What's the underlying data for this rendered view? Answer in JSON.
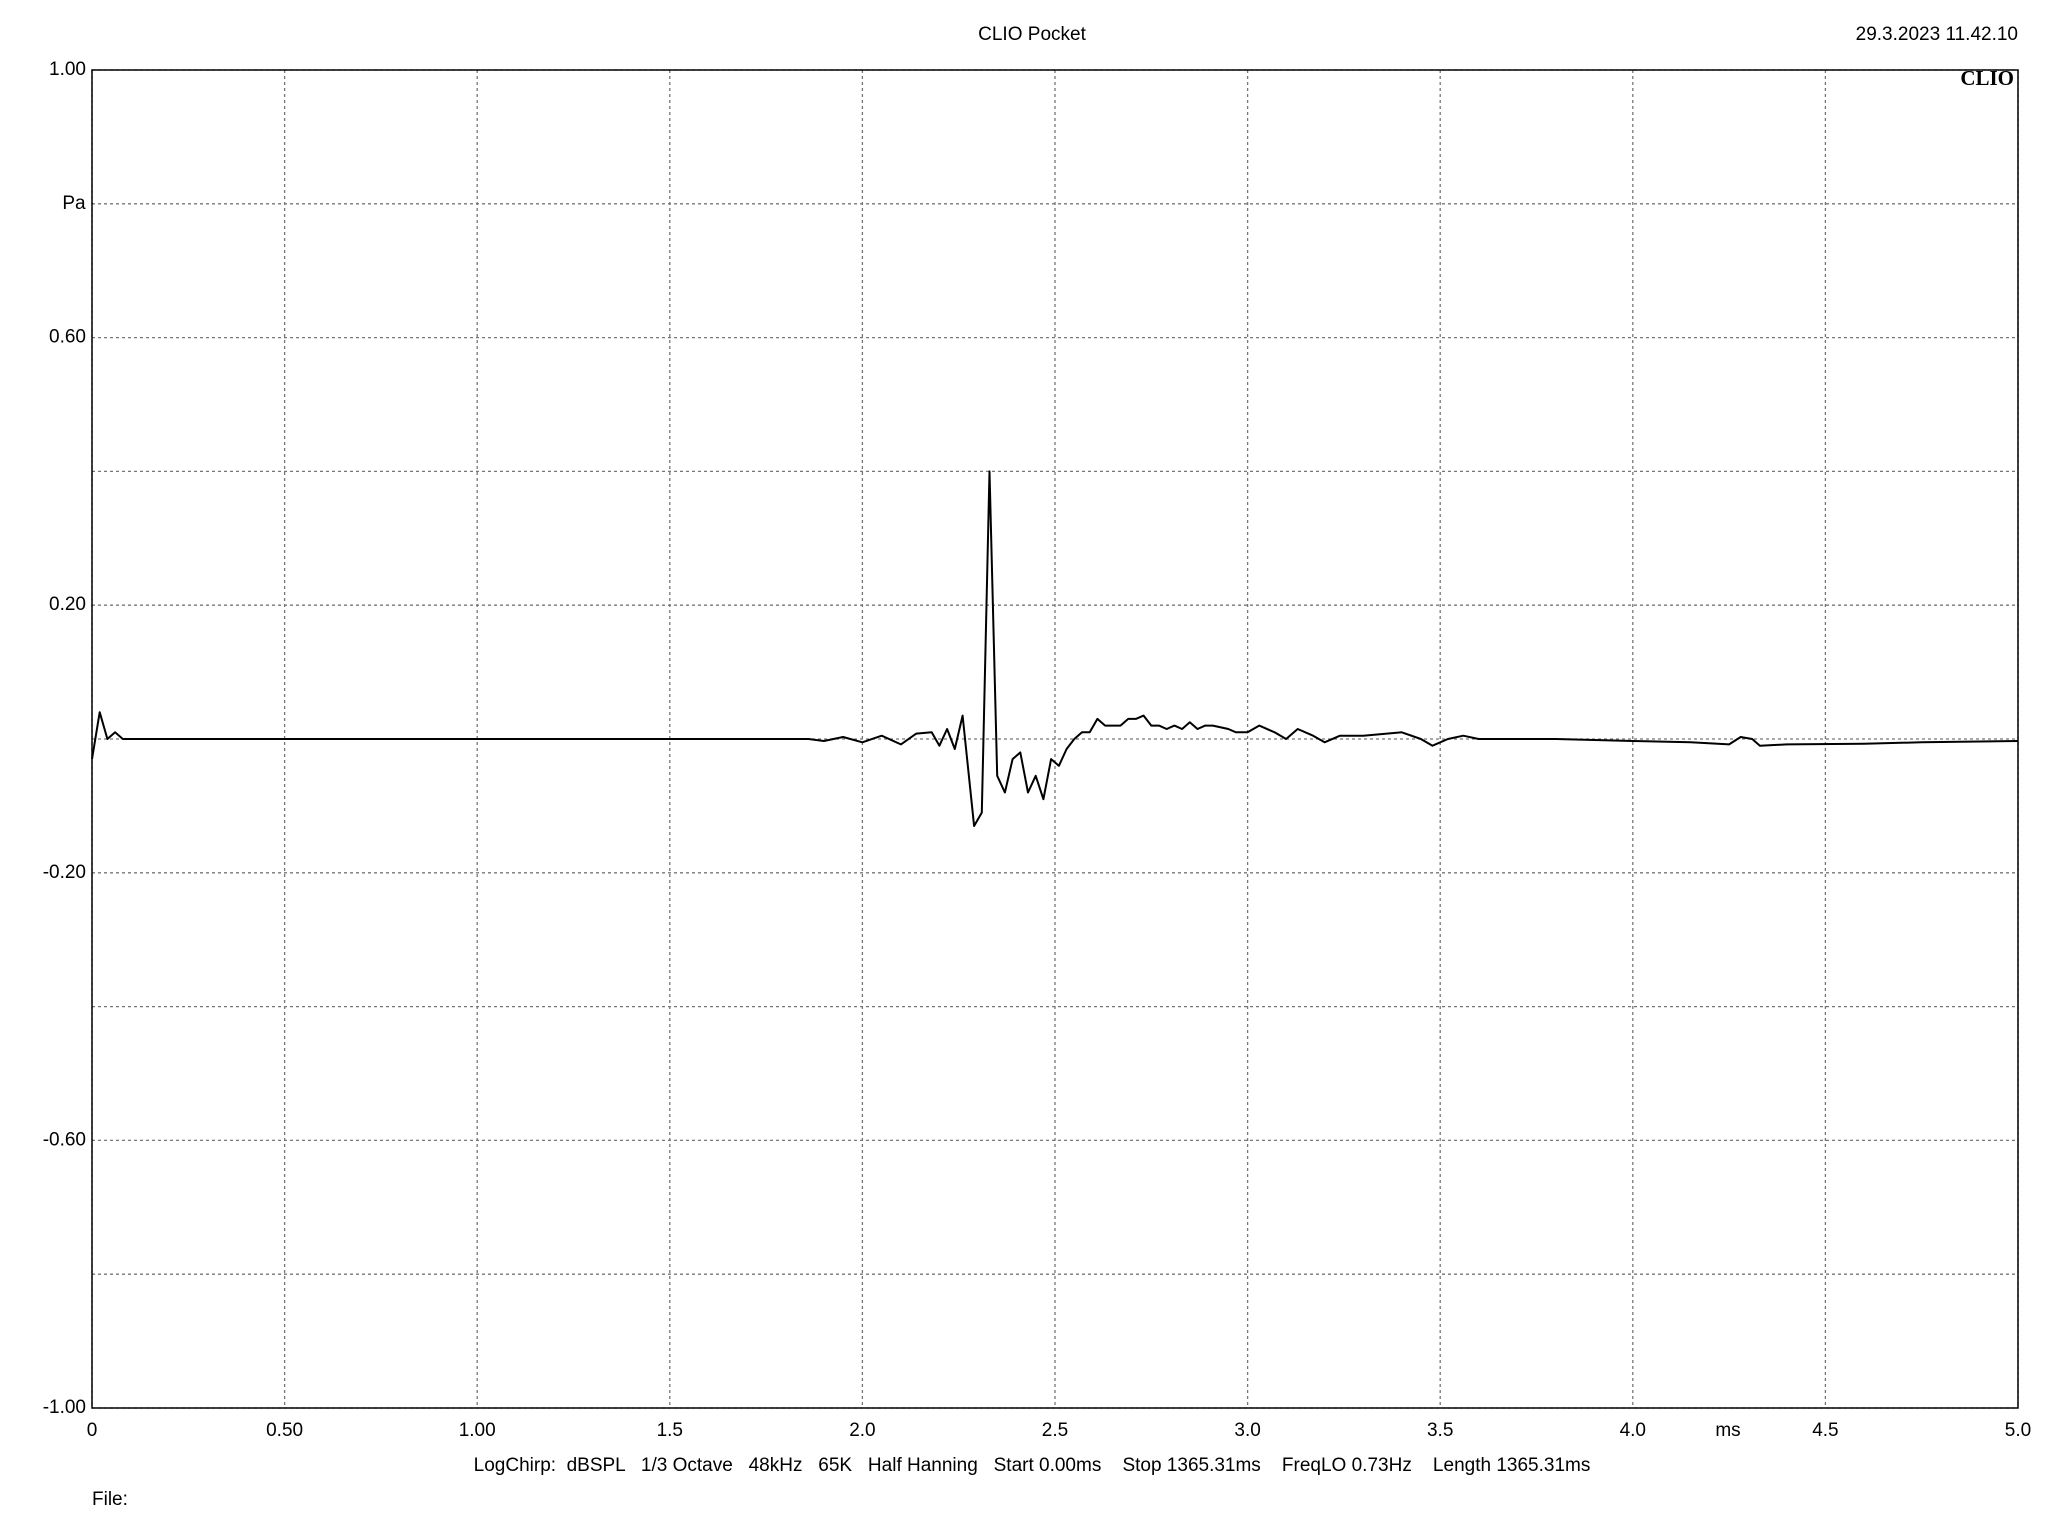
{
  "chart_data": {
    "type": "line",
    "title": "CLIO Pocket",
    "timestamp": "29.3.2023 11.42.10",
    "logo": "CLIO",
    "y_label": "Pa",
    "x_label": "ms",
    "footer": "LogChirp:  dBSPL   1/3 Octave   48kHz   65K   Half Hanning   Start 0.00ms    Stop 1365.31ms    FreqLO 0.73Hz    Length 1365.31ms",
    "file_label": "File:",
    "color": "#000000",
    "grid": true,
    "xlim": [
      0,
      5
    ],
    "ylim": [
      -1,
      1
    ],
    "xticks": [
      0,
      {
        "value": 0.5,
        "label": "0.50"
      },
      {
        "value": 1,
        "label": "1.00"
      },
      1.5,
      {
        "value": 2,
        "label": "2.0"
      },
      2.5,
      {
        "value": 3,
        "label": "3.0"
      },
      3.5,
      {
        "value": 4,
        "label": "4.0"
      },
      4.5,
      {
        "value": 5,
        "label": "5.0"
      }
    ],
    "yticks": [
      {
        "value": -1,
        "label": "-1.00"
      },
      {
        "value": -0.8,
        "label": null
      },
      {
        "value": -0.6,
        "label": "-0.60"
      },
      {
        "value": -0.4,
        "label": null
      },
      {
        "value": -0.2,
        "label": "-0.20"
      },
      {
        "value": 0,
        "label": null
      },
      {
        "value": 0.2,
        "label": "0.20"
      },
      {
        "value": 0.4,
        "label": null
      },
      {
        "value": 0.6,
        "label": "0.60"
      },
      {
        "value": 0.8,
        "label": null
      },
      {
        "value": 1,
        "label": "1.00"
      }
    ],
    "x": [
      0,
      0.02,
      0.04,
      0.06,
      0.08,
      0.1,
      1.86,
      1.9,
      1.95,
      2.0,
      2.05,
      2.1,
      2.14,
      2.18,
      2.2,
      2.22,
      2.24,
      2.26,
      2.29,
      2.31,
      2.33,
      2.35,
      2.37,
      2.39,
      2.41,
      2.43,
      2.45,
      2.47,
      2.49,
      2.51,
      2.53,
      2.55,
      2.57,
      2.59,
      2.61,
      2.63,
      2.65,
      2.67,
      2.69,
      2.71,
      2.73,
      2.75,
      2.77,
      2.79,
      2.81,
      2.83,
      2.85,
      2.87,
      2.89,
      2.91,
      2.95,
      2.97,
      3.0,
      3.03,
      3.07,
      3.1,
      3.13,
      3.17,
      3.2,
      3.24,
      3.3,
      3.4,
      3.45,
      3.48,
      3.52,
      3.56,
      3.6,
      3.8,
      4.0,
      4.15,
      4.25,
      4.28,
      4.31,
      4.33,
      4.4,
      4.6,
      4.75,
      5.0
    ],
    "values": [
      -0.03,
      0.04,
      0,
      0.01,
      0,
      0,
      0,
      -0.003,
      0.003,
      -0.005,
      0.005,
      -0.008,
      0.008,
      0.01,
      -0.01,
      0.015,
      -0.015,
      0.035,
      -0.13,
      -0.11,
      0.4,
      -0.055,
      -0.08,
      -0.03,
      -0.02,
      -0.08,
      -0.055,
      -0.09,
      -0.03,
      -0.04,
      -0.015,
      0,
      0.01,
      0.01,
      0.03,
      0.02,
      0.02,
      0.02,
      0.03,
      0.03,
      0.035,
      0.02,
      0.02,
      0.015,
      0.02,
      0.015,
      0.025,
      0.015,
      0.02,
      0.02,
      0.015,
      0.01,
      0.01,
      0.02,
      0.01,
      0,
      0.015,
      0.005,
      -0.005,
      0.005,
      0.005,
      0.01,
      0,
      -0.01,
      0,
      0.005,
      0,
      0,
      -0.003,
      -0.005,
      -0.008,
      0.003,
      0,
      -0.01,
      -0.008,
      -0.007,
      -0.005,
      -0.003
    ]
  }
}
